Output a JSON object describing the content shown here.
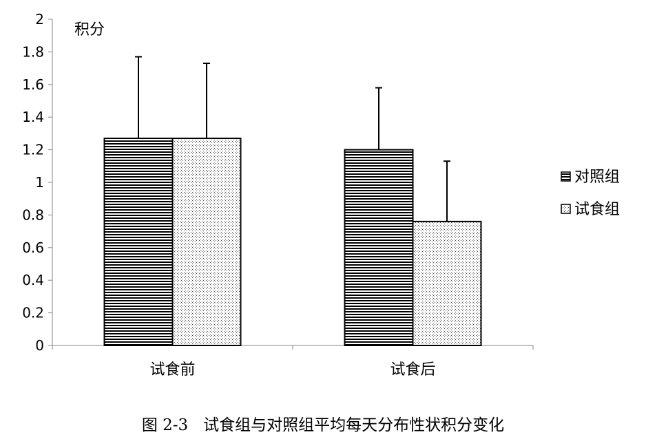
{
  "chart_data": {
    "type": "bar",
    "ylabel": "积分",
    "ylim": [
      0,
      2
    ],
    "y_ticks": [
      "0",
      "0.2",
      "0.4",
      "0.6",
      "0.8",
      "1",
      "1.2",
      "1.4",
      "1.6",
      "1.8",
      "2"
    ],
    "categories": [
      "试食前",
      "试食后"
    ],
    "series": [
      {
        "name": "对照组",
        "pattern": "horizontal-stripes",
        "values": [
          1.27,
          1.2
        ],
        "error": [
          0.5,
          0.38
        ]
      },
      {
        "name": "试食组",
        "pattern": "dots",
        "values": [
          1.27,
          0.76
        ],
        "error": [
          0.46,
          0.37
        ]
      }
    ],
    "legend_position": "right",
    "grid": false
  },
  "caption": {
    "figure_number": "图 2-3",
    "text": "试食组与对照组平均每天分布性状积分变化"
  }
}
